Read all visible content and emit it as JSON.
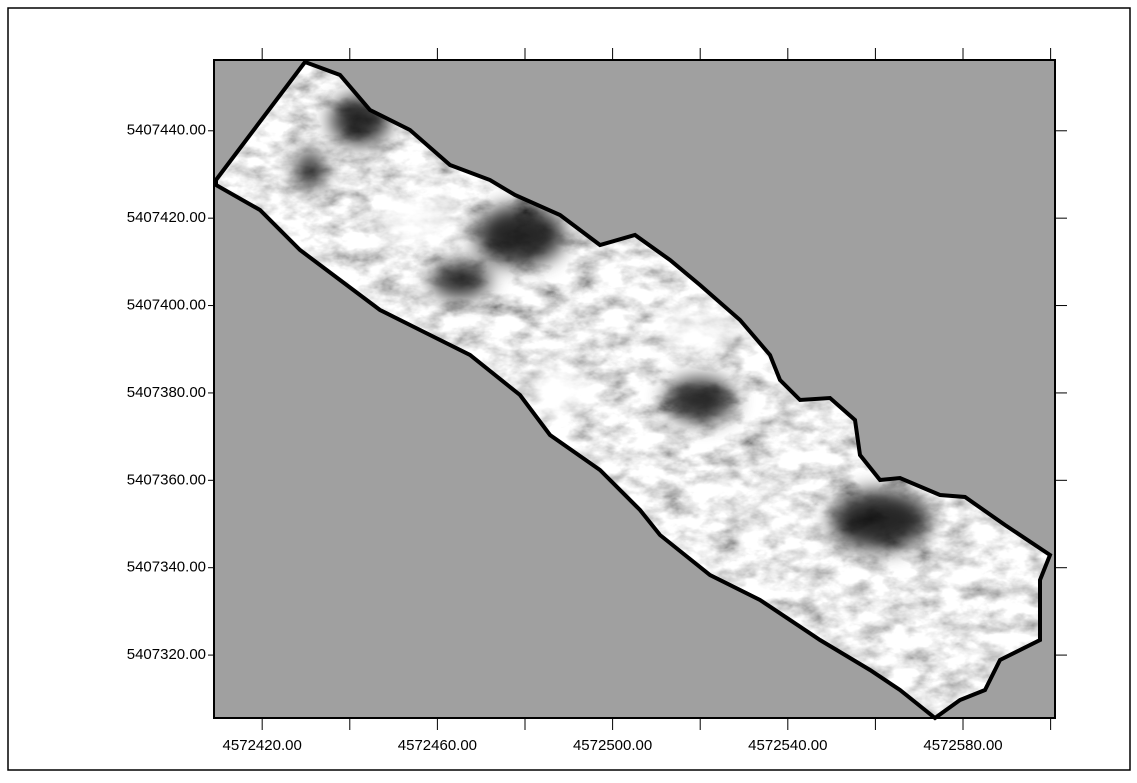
{
  "chart_data": {
    "type": "map",
    "xlim": [
      4572409,
      4572601
    ],
    "ylim": [
      5407305.6,
      5407456.2
    ],
    "xticks": [
      {
        "value": 4572420,
        "label": "4572420.00"
      },
      {
        "value": 4572460,
        "label": "4572460.00"
      },
      {
        "value": 4572500,
        "label": "4572500.00"
      },
      {
        "value": 4572540,
        "label": "4572540.00"
      },
      {
        "value": 4572580,
        "label": "4572580.00"
      }
    ],
    "xminorticks": [
      4572440,
      4572480,
      4572520,
      4572560,
      4572600
    ],
    "yticks": [
      {
        "value": 5407440,
        "label": "5407440.00"
      },
      {
        "value": 5407420,
        "label": "5407420.00"
      },
      {
        "value": 5407400,
        "label": "5407400.00"
      },
      {
        "value": 5407380,
        "label": "5407380.00"
      },
      {
        "value": 5407360,
        "label": "5407360.00"
      },
      {
        "value": 5407340,
        "label": "5407340.00"
      },
      {
        "value": 5407320,
        "label": "5407320.00"
      }
    ],
    "background": "#a0a0a0"
  }
}
